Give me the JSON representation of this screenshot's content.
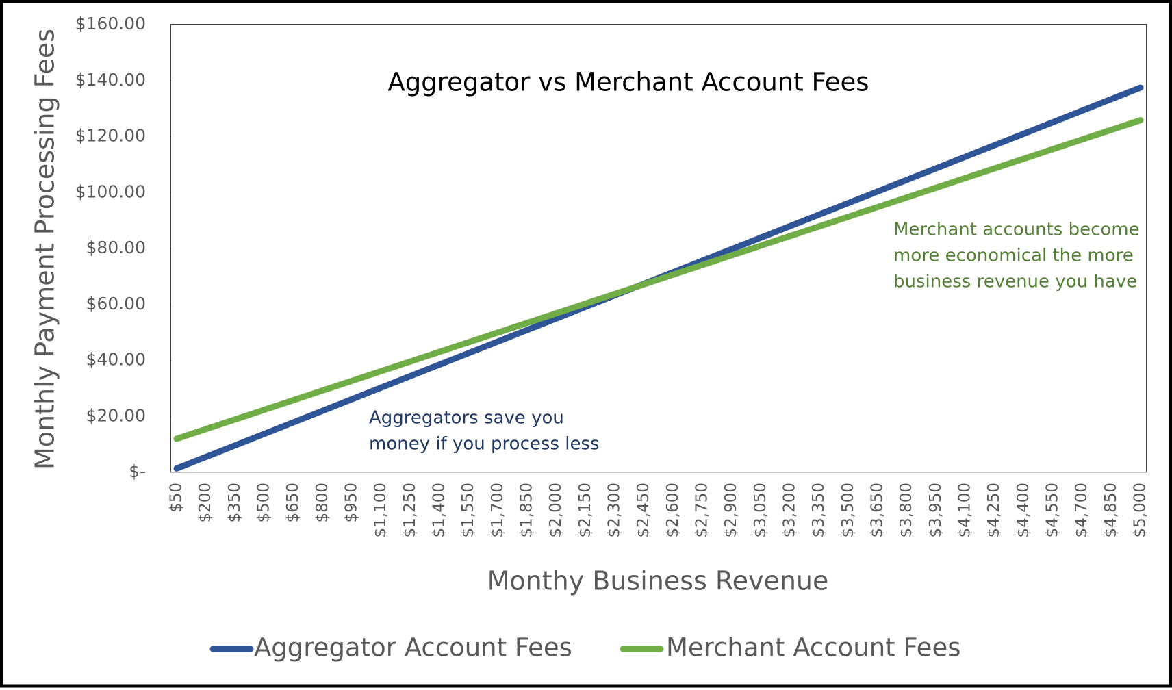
{
  "chart_data": {
    "type": "line",
    "title": "Aggregator vs Merchant Account Fees",
    "x_label": "Monthy Business Revenue",
    "y_label": "Monthly Payment Processing Fees",
    "categories": [
      "$50",
      null,
      null,
      "$200",
      null,
      null,
      "$350",
      null,
      null,
      "$500",
      null,
      null,
      "$650",
      null,
      null,
      "$800",
      null,
      null,
      "$950",
      null,
      null,
      "$1,100",
      null,
      null,
      "$1,250",
      null,
      null,
      "$1,400",
      null,
      null,
      "$1,550",
      null,
      null,
      "$1,700",
      null,
      null,
      "$1,850",
      null,
      null,
      "$2,000",
      null,
      null,
      "$2,150",
      null,
      null,
      "$2,300",
      null,
      null,
      "$2,450",
      null,
      null,
      "$2,600",
      null,
      null,
      "$2,750",
      null,
      null,
      "$2,900",
      null,
      null,
      "$3,050",
      null,
      null,
      "$3,200",
      null,
      null,
      "$3,350",
      null,
      null,
      "$3,500",
      null,
      null,
      "$3,650",
      null,
      null,
      "$3,800",
      null,
      null,
      "$3,950",
      null,
      null,
      "$4,100",
      null,
      null,
      "$4,250",
      null,
      null,
      "$4,400",
      null,
      null,
      "$4,550",
      null,
      null,
      "$4,700",
      null,
      null,
      "$4,850",
      null,
      null,
      "$5,000"
    ],
    "series": [
      {
        "name": "Aggregator Account Fees",
        "color": "#2f5597",
        "values": [
          1.38,
          2.75,
          4.13,
          5.5,
          6.88,
          8.25,
          9.63,
          11,
          12.38,
          13.75,
          15.13,
          16.5,
          17.88,
          19.25,
          20.63,
          22,
          23.38,
          24.75,
          26.13,
          27.5,
          28.88,
          30.25,
          31.63,
          33,
          34.38,
          35.75,
          37.13,
          38.5,
          39.88,
          41.25,
          42.63,
          44,
          45.38,
          46.75,
          48.13,
          49.5,
          50.88,
          52.25,
          53.63,
          55,
          56.38,
          57.75,
          59.13,
          60.5,
          61.88,
          63.25,
          64.63,
          66,
          67.38,
          68.75,
          70.13,
          71.5,
          72.88,
          74.25,
          75.63,
          77,
          78.38,
          79.75,
          81.13,
          82.5,
          83.88,
          85.25,
          86.63,
          88,
          89.38,
          90.75,
          92.13,
          93.5,
          94.88,
          96.25,
          97.63,
          99,
          100.38,
          101.75,
          103.13,
          104.5,
          105.88,
          107.25,
          108.63,
          110,
          111.38,
          112.75,
          114.13,
          115.5,
          116.88,
          118.25,
          119.63,
          121,
          122.38,
          123.75,
          125.13,
          126.5,
          127.88,
          129.25,
          130.63,
          132,
          133.38,
          134.75,
          136.13,
          137.5
        ]
      },
      {
        "name": "Merchant Account Fees",
        "color": "#70ad47",
        "values": [
          12,
          13.15,
          14.3,
          15.45,
          16.6,
          17.75,
          18.9,
          20.05,
          21.2,
          22.35,
          23.5,
          24.65,
          25.8,
          26.95,
          28.1,
          29.25,
          30.4,
          31.55,
          32.7,
          33.85,
          35,
          36.15,
          37.3,
          38.45,
          39.6,
          40.75,
          41.9,
          43.05,
          44.2,
          45.35,
          46.5,
          47.65,
          48.8,
          49.95,
          51.1,
          52.25,
          53.4,
          54.55,
          55.7,
          56.85,
          58,
          59.15,
          60.3,
          61.45,
          62.6,
          63.75,
          64.9,
          66.05,
          67.2,
          68.35,
          69.5,
          70.65,
          71.8,
          72.95,
          74.1,
          75.25,
          76.4,
          77.55,
          78.7,
          79.85,
          81,
          82.15,
          83.3,
          84.45,
          85.6,
          86.75,
          87.9,
          89.05,
          90.2,
          91.35,
          92.5,
          93.65,
          94.8,
          95.95,
          97.1,
          98.25,
          99.4,
          100.55,
          101.7,
          102.85,
          104,
          105.15,
          106.3,
          107.45,
          108.6,
          109.75,
          110.9,
          112.05,
          113.2,
          114.35,
          115.5,
          116.65,
          117.8,
          118.95,
          120.1,
          121.25,
          122.4,
          123.55,
          124.7,
          125.85
        ]
      }
    ],
    "ylim": [
      0,
      160
    ],
    "yticks": [
      {
        "value": 0,
        "label": "$-"
      },
      {
        "value": 20,
        "label": "$20.00"
      },
      {
        "value": 40,
        "label": "$40.00"
      },
      {
        "value": 60,
        "label": "$60.00"
      },
      {
        "value": 80,
        "label": "$80.00"
      },
      {
        "value": 100,
        "label": "$100.00"
      },
      {
        "value": 120,
        "label": "$120.00"
      },
      {
        "value": 140,
        "label": "$140.00"
      },
      {
        "value": 160,
        "label": "$160.00"
      }
    ],
    "grid": false,
    "legend": "bottom",
    "annotations": [
      {
        "text": [
          "Merchant accounts become",
          "more economical the more",
          "business revenue you have"
        ],
        "color": "#548235"
      },
      {
        "text": [
          "Aggregators save you",
          "money if you process less"
        ],
        "color": "#203864"
      }
    ]
  }
}
